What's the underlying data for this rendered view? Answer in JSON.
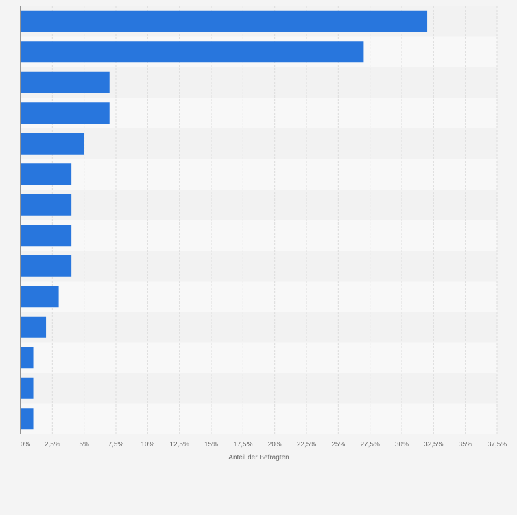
{
  "chart_data": {
    "type": "bar",
    "orientation": "horizontal",
    "categories": [
      "",
      "",
      "",
      "",
      "",
      "",
      "",
      "",
      "",
      "",
      "",
      "",
      "",
      ""
    ],
    "values": [
      32,
      27,
      7,
      7,
      5,
      4,
      4,
      4,
      4,
      3,
      2,
      1,
      1,
      1
    ],
    "xlabel": "Anteil der Befragten",
    "ylabel": "",
    "xlim": [
      0,
      37.5
    ],
    "ticks": [
      "0%",
      "2,5%",
      "5%",
      "7,5%",
      "10%",
      "12,5%",
      "15%",
      "17,5%",
      "20%",
      "22,5%",
      "25%",
      "27,5%",
      "30%",
      "32,5%",
      "35%",
      "37,5%"
    ],
    "grid": true,
    "colors": {
      "bar": "#2876dd",
      "band_a": "#f2f2f2",
      "band_b": "#f8f8f8",
      "grid": "#dcdcdc",
      "axis": "#333333"
    }
  }
}
